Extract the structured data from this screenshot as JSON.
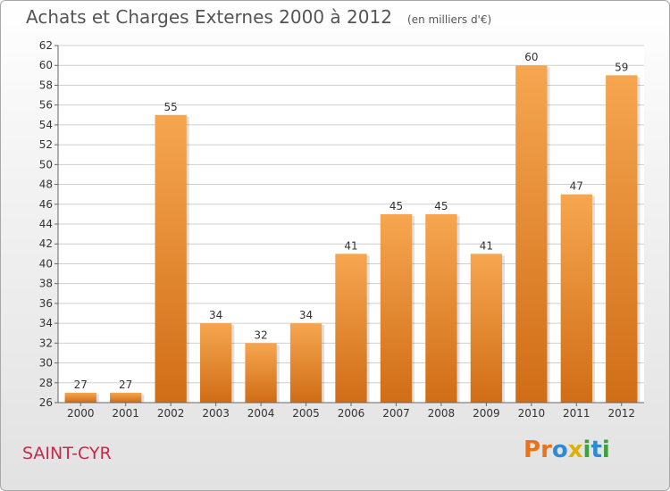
{
  "header": {
    "title": "Achats et Charges Externes 2000 à 2012",
    "subtitle": "(en milliers d'€)"
  },
  "place": "SAINT-CYR",
  "logo": {
    "letters": [
      "P",
      "r",
      "o",
      "x",
      "i",
      "t",
      "i"
    ],
    "colors": [
      "#e8731c",
      "#e8731c",
      "#2f8ad6",
      "#e0b000",
      "#3aa33a",
      "#2f8ad6",
      "#3aa33a"
    ]
  },
  "colors": {
    "bar_light": "#f6a650",
    "bar_dark": "#d06d16",
    "grid": "#cfcfcf",
    "plot_bg": "#ffffff"
  },
  "chart_data": {
    "type": "bar",
    "title": "Achats et Charges Externes 2000 à 2012",
    "subtitle": "(en milliers d'€)",
    "categories": [
      "2000",
      "2001",
      "2002",
      "2003",
      "2004",
      "2005",
      "2006",
      "2007",
      "2008",
      "2009",
      "2010",
      "2011",
      "2012"
    ],
    "values": [
      27,
      27,
      55,
      34,
      32,
      34,
      41,
      45,
      45,
      41,
      60,
      47,
      59
    ],
    "data_labels": [
      "27",
      "27",
      "55",
      "34",
      "32",
      "34",
      "41",
      "45",
      "45",
      "41",
      "60",
      "47",
      "59"
    ],
    "yticks": [
      "26",
      "28",
      "30",
      "32",
      "34",
      "36",
      "38",
      "40",
      "42",
      "44",
      "46",
      "48",
      "50",
      "52",
      "54",
      "56",
      "58",
      "60",
      "62"
    ],
    "ylim": [
      26,
      62
    ],
    "xlabel": "",
    "ylabel": "",
    "grid": true,
    "legend": "none"
  }
}
